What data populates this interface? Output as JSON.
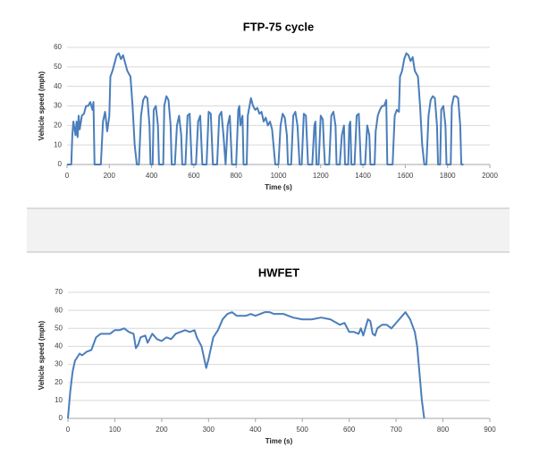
{
  "chart_data": [
    {
      "type": "line",
      "title": "FTP-75 cycle",
      "xlabel": "Time (s)",
      "ylabel": "Vehicle speed (mph)",
      "color": "#4a7ebb",
      "grid": true,
      "xlim": [
        0,
        2000
      ],
      "ylim": [
        0,
        60
      ],
      "xticks": [
        0,
        200,
        400,
        600,
        800,
        1000,
        1200,
        1400,
        1600,
        1800,
        2000
      ],
      "yticks": [
        0,
        10,
        20,
        30,
        40,
        50,
        60
      ],
      "x": [
        0,
        20,
        25,
        30,
        40,
        45,
        50,
        55,
        60,
        70,
        80,
        90,
        100,
        110,
        120,
        125,
        130,
        160,
        170,
        180,
        190,
        200,
        205,
        215,
        225,
        235,
        245,
        255,
        265,
        275,
        285,
        300,
        310,
        320,
        330,
        340,
        350,
        360,
        370,
        380,
        390,
        395,
        405,
        410,
        420,
        430,
        435,
        455,
        460,
        470,
        480,
        490,
        495,
        510,
        520,
        530,
        540,
        545,
        560,
        570,
        580,
        590,
        610,
        620,
        630,
        640,
        660,
        670,
        680,
        690,
        710,
        720,
        730,
        740,
        750,
        760,
        770,
        780,
        800,
        810,
        815,
        820,
        830,
        835,
        850,
        855,
        870,
        880,
        890,
        900,
        910,
        920,
        930,
        940,
        950,
        960,
        970,
        985,
        1000,
        1010,
        1020,
        1030,
        1040,
        1045,
        1060,
        1070,
        1080,
        1090,
        1100,
        1110,
        1120,
        1130,
        1140,
        1160,
        1170,
        1175,
        1180,
        1190,
        1200,
        1210,
        1215,
        1220,
        1240,
        1250,
        1260,
        1270,
        1275,
        1290,
        1300,
        1310,
        1315,
        1330,
        1335,
        1340,
        1345,
        1360,
        1370,
        1380,
        1390,
        1410,
        1420,
        1430,
        1435,
        1455,
        1460,
        1470,
        1480,
        1490,
        1500,
        1510,
        1515,
        1540,
        1550,
        1560,
        1570,
        1575,
        1585,
        1595,
        1605,
        1615,
        1625,
        1635,
        1645,
        1660,
        1670,
        1680,
        1690,
        1700,
        1710,
        1720,
        1730,
        1740,
        1750,
        1755,
        1765,
        1770,
        1780,
        1790,
        1795,
        1815,
        1820,
        1830,
        1840,
        1850,
        1860,
        1865,
        1875
      ],
      "values": [
        0,
        0,
        15,
        22,
        15,
        22,
        14,
        25,
        18,
        25,
        26,
        30,
        30,
        32,
        28,
        32,
        0,
        0,
        22,
        27,
        17,
        25,
        45,
        48,
        52,
        56,
        57,
        54,
        56,
        52,
        48,
        45,
        30,
        10,
        0,
        0,
        25,
        33,
        35,
        34,
        20,
        0,
        0,
        28,
        30,
        20,
        0,
        0,
        30,
        35,
        33,
        20,
        0,
        0,
        20,
        25,
        15,
        0,
        0,
        25,
        26,
        0,
        0,
        22,
        25,
        0,
        0,
        27,
        26,
        0,
        0,
        25,
        27,
        15,
        0,
        20,
        25,
        0,
        0,
        28,
        30,
        20,
        25,
        0,
        0,
        25,
        34,
        30,
        28,
        29,
        26,
        27,
        22,
        24,
        20,
        22,
        18,
        0,
        0,
        20,
        26,
        24,
        15,
        0,
        0,
        25,
        27,
        20,
        0,
        0,
        26,
        25,
        0,
        0,
        20,
        22,
        0,
        0,
        25,
        23,
        10,
        0,
        0,
        25,
        27,
        20,
        0,
        0,
        15,
        20,
        0,
        0,
        20,
        22,
        0,
        0,
        25,
        26,
        0,
        0,
        20,
        15,
        0,
        0,
        17,
        25,
        28,
        30,
        30,
        33,
        0,
        0,
        25,
        28,
        27,
        45,
        48,
        54,
        57,
        56,
        53,
        55,
        48,
        45,
        30,
        10,
        0,
        0,
        25,
        33,
        35,
        34,
        20,
        0,
        0,
        28,
        30,
        20,
        0,
        0,
        30,
        35,
        35,
        34,
        20,
        0,
        0
      ]
    },
    {
      "type": "line",
      "title": "HWFET",
      "xlabel": "Time (s)",
      "ylabel": "Vehicle speed (mph)",
      "color": "#4a7ebb",
      "grid": true,
      "xlim": [
        0,
        900
      ],
      "ylim": [
        0,
        70
      ],
      "xticks": [
        0,
        100,
        200,
        300,
        400,
        500,
        600,
        700,
        800,
        900
      ],
      "yticks": [
        0,
        10,
        20,
        30,
        40,
        50,
        60,
        70
      ],
      "x": [
        0,
        5,
        10,
        15,
        25,
        30,
        40,
        50,
        60,
        70,
        80,
        90,
        100,
        110,
        120,
        130,
        140,
        145,
        150,
        155,
        165,
        170,
        180,
        190,
        200,
        210,
        220,
        230,
        240,
        250,
        260,
        270,
        275,
        285,
        295,
        300,
        310,
        320,
        330,
        340,
        350,
        360,
        380,
        390,
        400,
        410,
        420,
        430,
        440,
        460,
        480,
        500,
        520,
        540,
        560,
        580,
        590,
        600,
        610,
        620,
        625,
        630,
        640,
        645,
        650,
        655,
        660,
        670,
        680,
        690,
        700,
        710,
        720,
        730,
        740,
        745,
        750,
        755,
        760
      ],
      "values": [
        0,
        15,
        26,
        32,
        36,
        35,
        37,
        38,
        45,
        47,
        47,
        47,
        49,
        49,
        50,
        48,
        47,
        39,
        41,
        45,
        46,
        42,
        47,
        44,
        43,
        45,
        44,
        47,
        48,
        49,
        48,
        49,
        45,
        40,
        28,
        33,
        45,
        49,
        55,
        58,
        59,
        57,
        57,
        58,
        57,
        58,
        59,
        59,
        58,
        58,
        56,
        55,
        55,
        56,
        55,
        52,
        53,
        48,
        48,
        47,
        50,
        46,
        55,
        54,
        47,
        46,
        50,
        52,
        52,
        50,
        53,
        56,
        59,
        55,
        48,
        40,
        25,
        10,
        0
      ]
    }
  ]
}
